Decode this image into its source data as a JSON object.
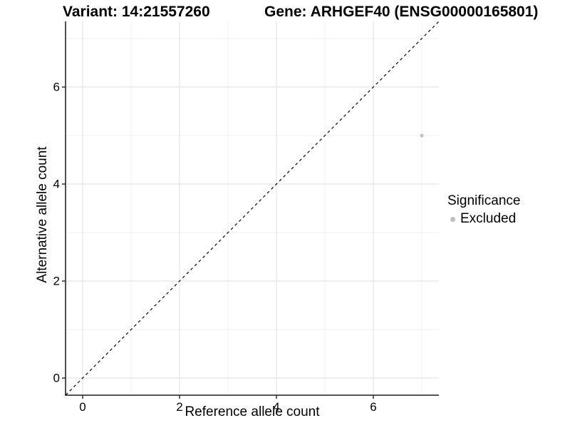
{
  "chart_data": {
    "type": "scatter",
    "title_left": "Variant: 14:21557260",
    "title_right": "Gene: ARHGEF40 (ENSG00000165801)",
    "xlabel": "Reference allele count",
    "ylabel": "Alternative allele count",
    "xlim": [
      -0.35,
      7.35
    ],
    "ylim": [
      -0.35,
      7.35
    ],
    "xticks": [
      0,
      2,
      4,
      6
    ],
    "yticks": [
      0,
      2,
      4,
      6
    ],
    "minor_xticks": [
      1,
      3,
      5,
      7
    ],
    "minor_yticks": [
      1,
      3,
      5,
      7
    ],
    "grid": true,
    "points": [
      {
        "x": 7,
        "y": 5,
        "series": "Excluded"
      }
    ],
    "reference_line": {
      "type": "identity",
      "slope": 1,
      "intercept": 0,
      "style": "dashed"
    },
    "legend": {
      "position": "right",
      "title": "Significance",
      "entries": [
        {
          "label": "Excluded",
          "color": "#bebebe"
        }
      ]
    },
    "colors": {
      "point": "#bebebe",
      "grid_major": "#e4e4e4",
      "grid_minor": "#f0f0f0",
      "axis_line": "#3c3c3c",
      "reference_line": "#000000",
      "text": "#000000",
      "background": "#ffffff"
    }
  }
}
